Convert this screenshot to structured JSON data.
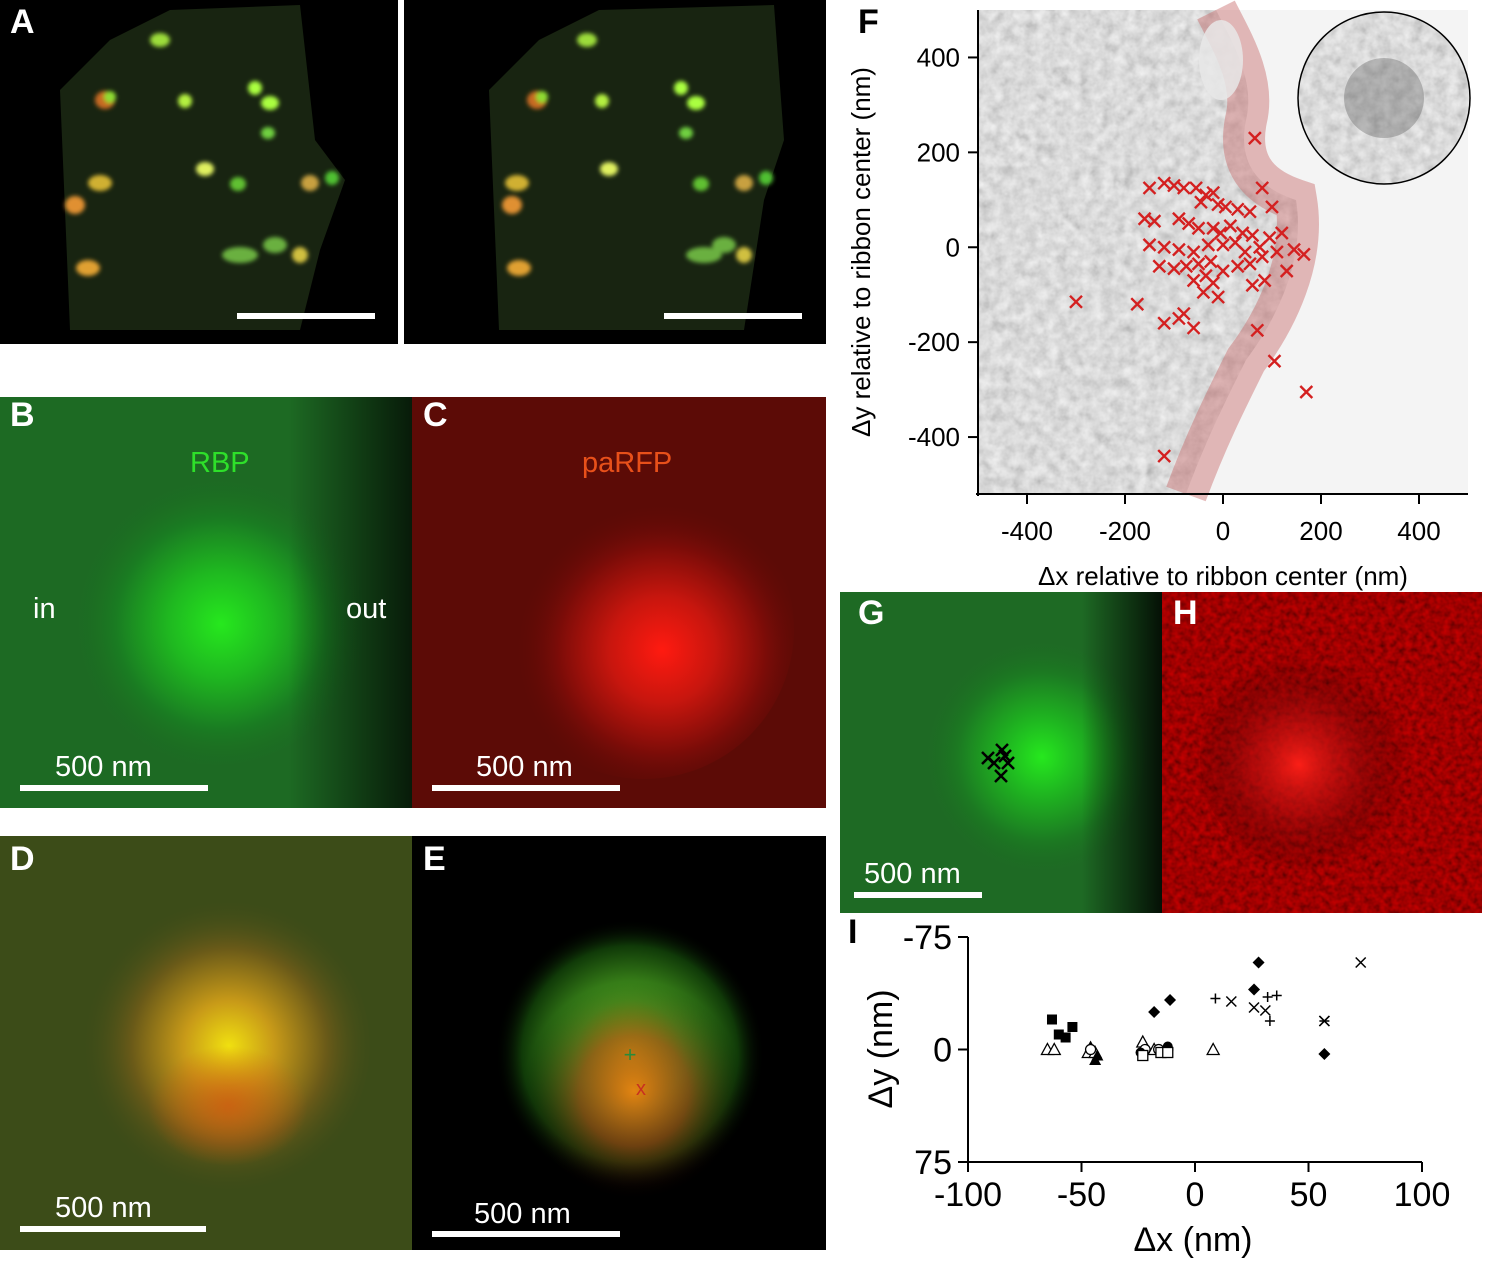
{
  "panel_labels": {
    "A": "A",
    "B": "B",
    "C": "C",
    "D": "D",
    "E": "E",
    "F": "F",
    "G": "G",
    "H": "H",
    "I": "I"
  },
  "panel_b": {
    "channel_label": "RBP",
    "in_label": "in",
    "out_label": "out",
    "scale_label": "500 nm"
  },
  "panel_c": {
    "channel_label": "paRFP",
    "scale_label": "500 nm"
  },
  "panel_d": {
    "scale_label": "500 nm"
  },
  "panel_e": {
    "scale_label": "500 nm",
    "green_marker": "+",
    "red_marker": "x"
  },
  "panel_g": {
    "scale_label": "500 nm"
  },
  "colors": {
    "green": "#22c21e",
    "red": "#e81010",
    "marker_red": "#d42020",
    "membrane": "#c86a6a"
  },
  "chart_data": [
    {
      "id": "F",
      "type": "scatter",
      "xlabel": "Δx relative to ribbon center (nm)",
      "ylabel": "Δy relative to ribbon center (nm)",
      "xlim": [
        -500,
        500
      ],
      "ylim": [
        -520,
        500
      ],
      "xticks": [
        -400,
        -200,
        0,
        200,
        400
      ],
      "yticks": [
        400,
        200,
        0,
        -200,
        -400
      ],
      "series": [
        {
          "marker": "x",
          "color": "#d42020",
          "points": [
            [
              65,
              230
            ],
            [
              -150,
              125
            ],
            [
              -120,
              135
            ],
            [
              -100,
              130
            ],
            [
              -80,
              125
            ],
            [
              -55,
              125
            ],
            [
              -35,
              110
            ],
            [
              -20,
              115
            ],
            [
              -45,
              95
            ],
            [
              -10,
              90
            ],
            [
              5,
              85
            ],
            [
              30,
              80
            ],
            [
              55,
              75
            ],
            [
              80,
              125
            ],
            [
              100,
              85
            ],
            [
              -160,
              60
            ],
            [
              -140,
              55
            ],
            [
              -90,
              60
            ],
            [
              -70,
              50
            ],
            [
              -50,
              40
            ],
            [
              -20,
              40
            ],
            [
              -5,
              30
            ],
            [
              15,
              45
            ],
            [
              40,
              30
            ],
            [
              60,
              25
            ],
            [
              95,
              20
            ],
            [
              120,
              30
            ],
            [
              -150,
              5
            ],
            [
              -120,
              0
            ],
            [
              -90,
              -5
            ],
            [
              -60,
              -10
            ],
            [
              -30,
              5
            ],
            [
              0,
              5
            ],
            [
              25,
              10
            ],
            [
              45,
              -10
            ],
            [
              75,
              0
            ],
            [
              110,
              -10
            ],
            [
              145,
              -5
            ],
            [
              165,
              -15
            ],
            [
              -130,
              -40
            ],
            [
              -100,
              -45
            ],
            [
              -75,
              -40
            ],
            [
              -50,
              -35
            ],
            [
              -25,
              -30
            ],
            [
              0,
              -50
            ],
            [
              30,
              -40
            ],
            [
              55,
              -35
            ],
            [
              80,
              -20
            ],
            [
              130,
              -50
            ],
            [
              -60,
              -70
            ],
            [
              -35,
              -60
            ],
            [
              -20,
              -75
            ],
            [
              -40,
              -95
            ],
            [
              -10,
              -105
            ],
            [
              60,
              -80
            ],
            [
              85,
              -70
            ],
            [
              -300,
              -115
            ],
            [
              -175,
              -120
            ],
            [
              -80,
              -140
            ],
            [
              -120,
              -160
            ],
            [
              -90,
              -150
            ],
            [
              -60,
              -170
            ],
            [
              70,
              -175
            ],
            [
              105,
              -240
            ],
            [
              170,
              -305
            ],
            [
              -120,
              -440
            ]
          ]
        }
      ]
    },
    {
      "id": "I",
      "type": "scatter",
      "xlabel": "Δx (nm)",
      "ylabel": "Δy (nm)",
      "xlim": [
        -100,
        100
      ],
      "ylim": [
        75,
        -75
      ],
      "xticks": [
        -100,
        -50,
        0,
        50,
        100
      ],
      "yticks": [
        -75,
        0,
        75
      ],
      "series": [
        {
          "marker": "square",
          "points": [
            [
              -63,
              -20
            ],
            [
              -60,
              -10
            ],
            [
              -57,
              -8
            ],
            [
              -54,
              -15
            ]
          ]
        },
        {
          "marker": "triangle-open",
          "points": [
            [
              -65,
              0
            ],
            [
              -62,
              0
            ],
            [
              -47,
              2
            ],
            [
              -44,
              2
            ],
            [
              -23,
              -5
            ],
            [
              -18,
              0
            ],
            [
              8,
              0
            ]
          ]
        },
        {
          "marker": "triangle",
          "points": [
            [
              -46,
              -2
            ],
            [
              -43,
              4
            ],
            [
              -44,
              7
            ]
          ]
        },
        {
          "marker": "circle-open",
          "points": [
            [
              -46,
              0
            ],
            [
              -22,
              0
            ],
            [
              -16,
              0
            ],
            [
              -12,
              0
            ]
          ]
        },
        {
          "marker": "circle",
          "points": [
            [
              -24,
              2
            ],
            [
              -12,
              -2
            ]
          ]
        },
        {
          "marker": "square-open",
          "points": [
            [
              -23,
              4
            ],
            [
              -15,
              2
            ],
            [
              -12,
              2
            ]
          ]
        },
        {
          "marker": "diamond",
          "points": [
            [
              -18,
              -25
            ],
            [
              -11,
              -33
            ],
            [
              26,
              -40
            ],
            [
              28,
              -58
            ],
            [
              57,
              3
            ]
          ]
        },
        {
          "marker": "plus",
          "points": [
            [
              9,
              -34
            ],
            [
              32,
              -35
            ],
            [
              36,
              -36
            ],
            [
              33,
              -19
            ]
          ]
        },
        {
          "marker": "cross",
          "points": [
            [
              16,
              -32
            ],
            [
              26,
              -28
            ],
            [
              31,
              -26
            ],
            [
              57,
              -19
            ],
            [
              73,
              -58
            ]
          ]
        },
        {
          "marker": "star",
          "points": [
            [
              57,
              -19
            ]
          ]
        }
      ]
    }
  ]
}
